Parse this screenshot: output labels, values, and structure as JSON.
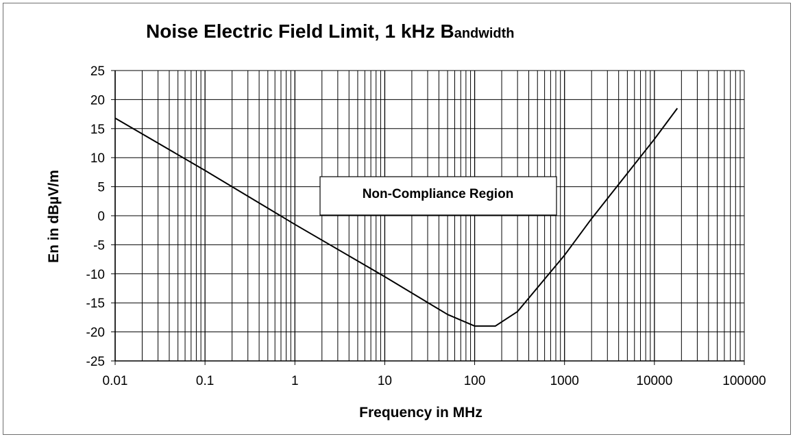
{
  "chart_data": {
    "type": "line",
    "title": "Noise Electric Field Limit, 1 kHz",
    "title_suffix_big": "B",
    "title_suffix_small": "andwidth",
    "xlabel": "Frequency in MHz",
    "ylabel": "En in dBµV/m",
    "x_scale": "log",
    "xlim": [
      0.01,
      100000
    ],
    "ylim": [
      -25,
      25
    ],
    "grid": true,
    "legend": "none",
    "x_tick_labels": [
      "0.01",
      "0.1",
      "1",
      "10",
      "100",
      "1000",
      "10000",
      "100000"
    ],
    "y_tick_labels": [
      "25",
      "20",
      "15",
      "10",
      "5",
      "0",
      "-5",
      "-10",
      "-15",
      "-20",
      "-25"
    ],
    "annotation": "Non-Compliance Region",
    "series": [
      {
        "x": [
          0.01,
          0.1,
          1,
          10,
          50,
          100,
          150,
          170,
          300,
          1000,
          2000,
          10000,
          18000
        ],
        "y": [
          16.8,
          7.8,
          -1.5,
          -10.5,
          -17,
          -19,
          -19,
          -19,
          -16.5,
          -6.8,
          -0.5,
          13.2,
          18.5
        ]
      }
    ],
    "colors": {
      "line": "#000000",
      "grid": "#000000",
      "background": "#ffffff"
    }
  }
}
